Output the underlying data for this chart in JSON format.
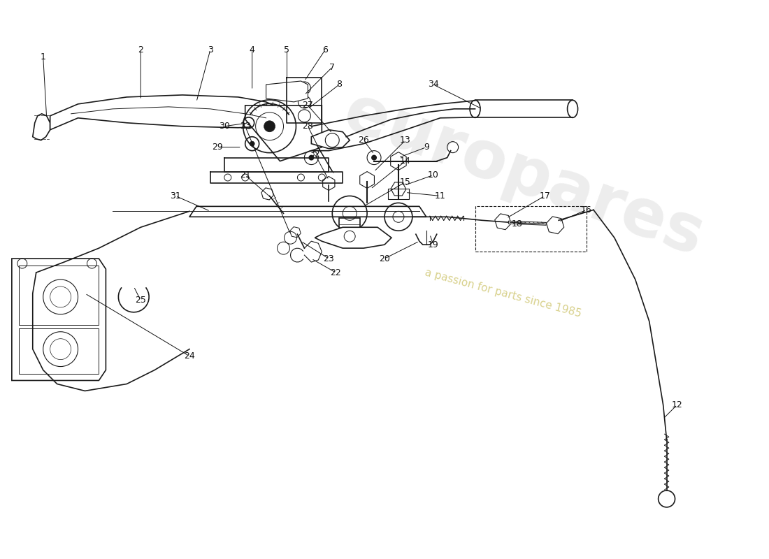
{
  "background_color": "#ffffff",
  "line_color": "#1a1a1a",
  "label_color": "#111111",
  "watermark_color1": "#cccccc",
  "watermark_color2": "#d4cc80",
  "watermark_text1": "europares",
  "watermark_text2": "a passion for parts since 1985"
}
